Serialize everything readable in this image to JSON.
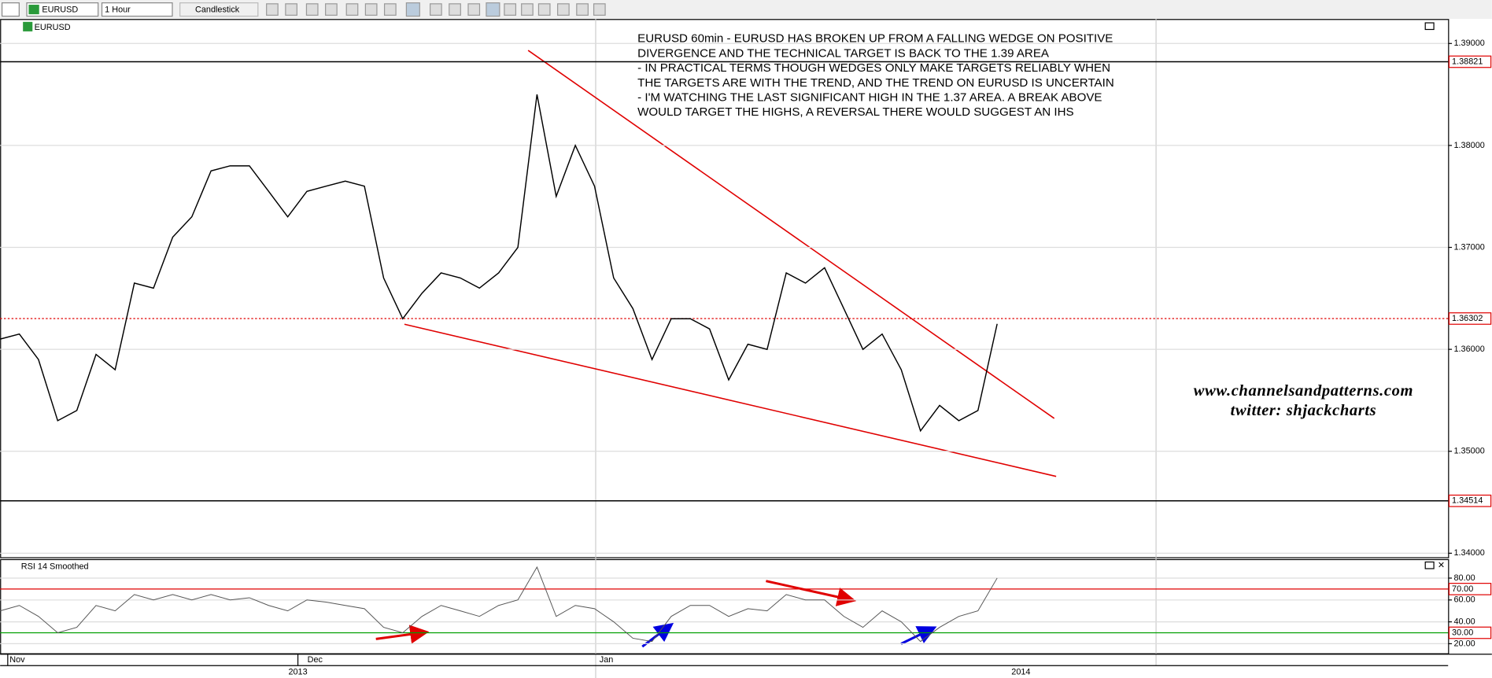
{
  "toolbar": {
    "symbol": "EURUSD",
    "interval": "1 Hour",
    "chart_style": "Candlestick"
  },
  "chart_data": [
    {
      "type": "line",
      "title": "EURUSD",
      "color": "#000000",
      "annotation": [
        "EURUSD 60min - EURUSD HAS BROKEN UP FROM A FALLING WEDGE ON POSITIVE",
        "DIVERGENCE AND THE TECHNICAL TARGET IS BACK TO THE 1.39 AREA",
        "- IN PRACTICAL TERMS THOUGH WEDGES ONLY MAKE TARGETS RELIABLY WHEN",
        "THE TARGETS ARE WITH THE TREND, AND THE TREND ON EURUSD IS UNCERTAIN",
        "- I'M WATCHING THE LAST SIGNIFICANT HIGH IN THE 1.37 AREA. A BREAK ABOVE",
        "WOULD TARGET THE HIGHS, A REVERSAL THERE WOULD SUGGEST AN IHS"
      ],
      "watermark": [
        "www.channelsandpatterns.com",
        "twitter: shjackcharts"
      ],
      "values": [
        1.361,
        1.3615,
        1.359,
        1.353,
        1.354,
        1.3595,
        1.358,
        1.3665,
        1.366,
        1.371,
        1.373,
        1.3775,
        1.378,
        1.378,
        1.3755,
        1.373,
        1.3755,
        1.376,
        1.3765,
        1.376,
        1.367,
        1.363,
        1.3655,
        1.3675,
        1.367,
        1.366,
        1.3675,
        1.37,
        1.385,
        1.375,
        1.38,
        1.376,
        1.367,
        1.364,
        1.359,
        1.363,
        1.363,
        1.362,
        1.357,
        1.3605,
        1.36,
        1.3675,
        1.3665,
        1.368,
        1.364,
        1.36,
        1.3615,
        1.358,
        1.352,
        1.3545,
        1.353,
        1.354,
        1.3625
      ],
      "ylim": [
        1.3397,
        1.3924
      ],
      "yticks": [
        {
          "value": 1.34,
          "label": "1.34000"
        },
        {
          "value": 1.35,
          "label": "1.35000"
        },
        {
          "value": 1.36,
          "label": "1.36000"
        },
        {
          "value": 1.37,
          "label": "1.37000"
        },
        {
          "value": 1.38,
          "label": "1.38000"
        },
        {
          "value": 1.39,
          "label": "1.39000"
        }
      ],
      "price_lines": [
        {
          "value": 1.38821,
          "label": "1.38821",
          "color": "#000000",
          "dashed": false
        },
        {
          "value": 1.36302,
          "label": "1.36302",
          "color": "#e00000",
          "dashed": true
        },
        {
          "value": 1.34514,
          "label": "1.34514",
          "color": "#000000",
          "dashed": false
        }
      ]
    },
    {
      "type": "line",
      "title": "RSI 14 Smoothed",
      "color": "#555555",
      "values": [
        50,
        55,
        45,
        30,
        35,
        55,
        50,
        65,
        60,
        65,
        60,
        65,
        60,
        62,
        55,
        50,
        60,
        58,
        55,
        52,
        35,
        30,
        45,
        55,
        50,
        45,
        55,
        60,
        90,
        45,
        55,
        52,
        40,
        25,
        22,
        45,
        55,
        55,
        45,
        52,
        50,
        65,
        60,
        60,
        45,
        35,
        50,
        40,
        22,
        35,
        45,
        50,
        80
      ],
      "ylim": [
        13,
        95.6
      ],
      "yticks": [
        {
          "value": 20,
          "label": "20.00"
        },
        {
          "value": 40,
          "label": "40.00"
        },
        {
          "value": 60,
          "label": "60.00"
        },
        {
          "value": 80,
          "label": "80.00"
        }
      ],
      "levels": [
        {
          "value": 70,
          "label": "70.00",
          "color": "#e00000"
        },
        {
          "value": 30,
          "label": "30.00",
          "color": "#00a000"
        }
      ]
    }
  ],
  "x_axis": {
    "months": [
      "Nov",
      "Dec",
      "Jan"
    ],
    "years": [
      "2013",
      "2014"
    ]
  }
}
